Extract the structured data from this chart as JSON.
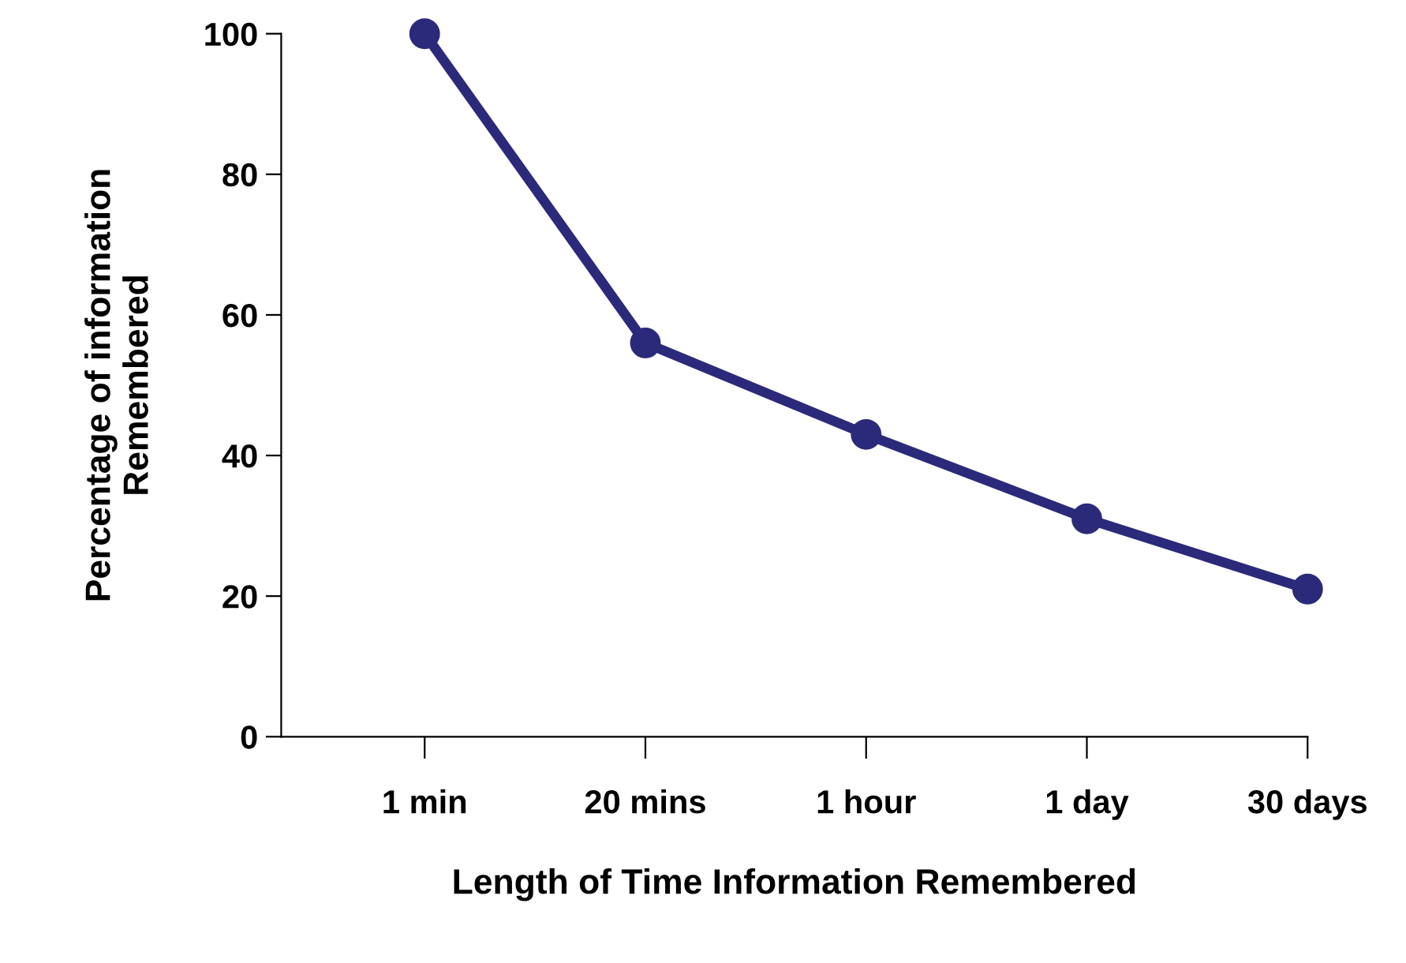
{
  "chart_data": {
    "type": "line",
    "xlabel": "Length of Time Information Remembered",
    "ylabel": "Percentage of information\nRemembered",
    "categories": [
      "1 min",
      "20 mins",
      "1 hour",
      "1 day",
      "30 days"
    ],
    "series": [
      {
        "color": "#2b2a7a",
        "values": [
          100,
          56,
          43,
          31,
          21
        ]
      }
    ],
    "ylim": [
      0,
      100
    ],
    "yticks": [
      0,
      20,
      40,
      60,
      80,
      100
    ],
    "grid": false,
    "marker": "circle",
    "line_style": "solid"
  }
}
